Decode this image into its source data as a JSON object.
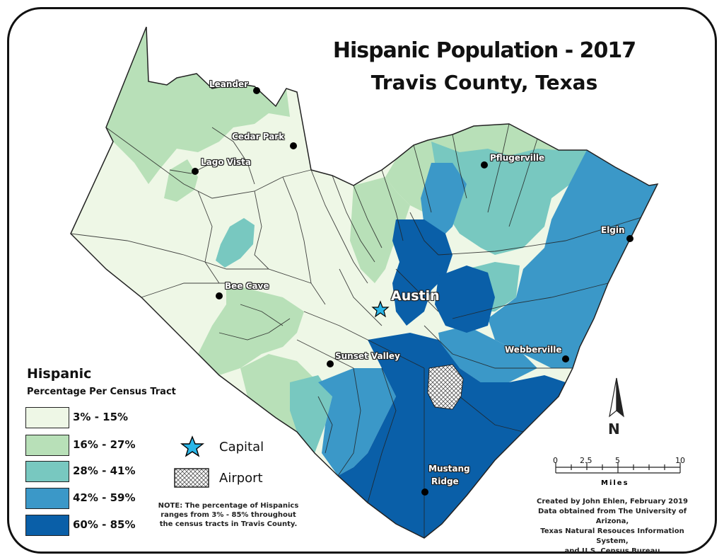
{
  "title": "Hispanic Population - 2017",
  "subtitle": "Travis County, Texas",
  "places": {
    "leander": "Leander",
    "cedar_park": "Cedar Park",
    "lago_vista": "Lago Vista",
    "pflugerville": "Pflugerville",
    "elgin": "Elgin",
    "bee_cave": "Bee Cave",
    "austin": "Austin",
    "sunset_valley": "Sunset Valley",
    "webberville": "Webberville",
    "mustang_ridge": "Mustang Ridge"
  },
  "legend": {
    "title": "Hispanic",
    "subtitle": "Percentage Per Census Tract",
    "classes": [
      {
        "label": "3% - 15%",
        "color": "#eef7e6"
      },
      {
        "label": "16% - 27%",
        "color": "#b8e0b8"
      },
      {
        "label": "28% - 41%",
        "color": "#78c8c0"
      },
      {
        "label": "42% - 59%",
        "color": "#3b98c8"
      },
      {
        "label": "60% - 85%",
        "color": "#0a5fa8"
      }
    ],
    "capital_label": "Capital",
    "airport_label": "Airport"
  },
  "note": "NOTE: The percentage of Hispanics ranges from 3% - 85% throughout the census tracts in Travis County.",
  "credit": {
    "line1": "Created by John Ehlen, February 2019",
    "line2": "Data obtained from The University of Arizona,",
    "line3": "Texas Natural Resouces Information System,",
    "line4": "and U.S. Census Bureau"
  },
  "scale": {
    "ticks": [
      "0",
      "2.5",
      "5",
      "10"
    ],
    "unit": "Miles"
  },
  "north": "N",
  "colors": {
    "outline": "#222222",
    "capital_star": "#29b6e8"
  }
}
